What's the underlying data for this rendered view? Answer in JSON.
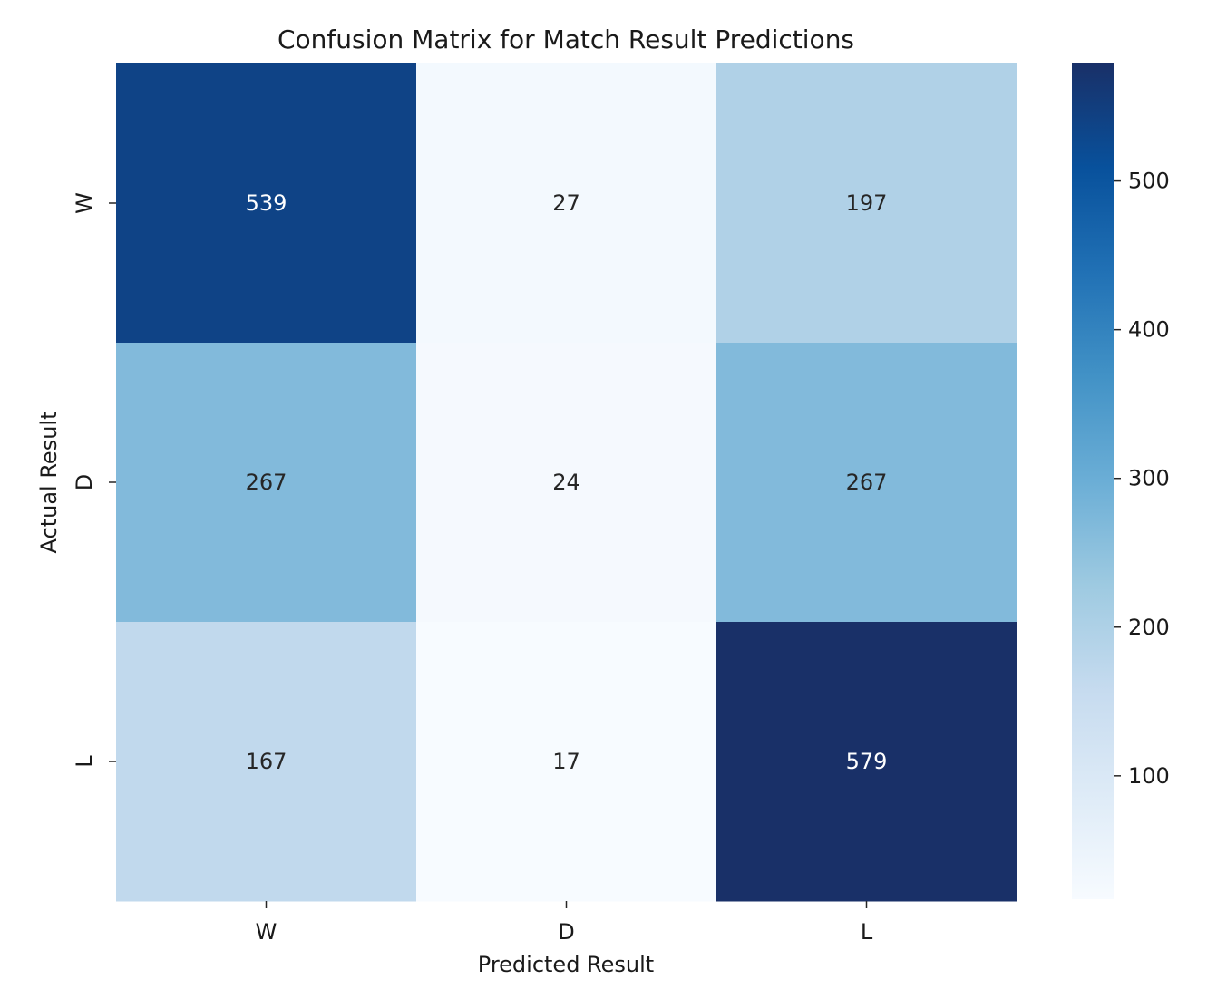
{
  "chart_data": {
    "type": "heatmap",
    "title": "Confusion Matrix for Match Result Predictions",
    "xlabel": "Predicted Result",
    "ylabel": "Actual Result",
    "x_categories": [
      "W",
      "D",
      "L"
    ],
    "y_categories": [
      "W",
      "D",
      "L"
    ],
    "values": [
      [
        539,
        27,
        197
      ],
      [
        267,
        24,
        267
      ],
      [
        167,
        17,
        579
      ]
    ],
    "colormap": "Blues",
    "colorbar": {
      "range": [
        17,
        579
      ],
      "ticks": [
        100,
        200,
        300,
        400,
        500
      ]
    }
  },
  "colors": {
    "blues": [
      "#f7fbff",
      "#deebf7",
      "#c6dbef",
      "#9ecae1",
      "#6baed6",
      "#4292c6",
      "#2171b5",
      "#08519c",
      "#193068"
    ],
    "text_dark": "#262626",
    "text_light": "#ffffff"
  }
}
